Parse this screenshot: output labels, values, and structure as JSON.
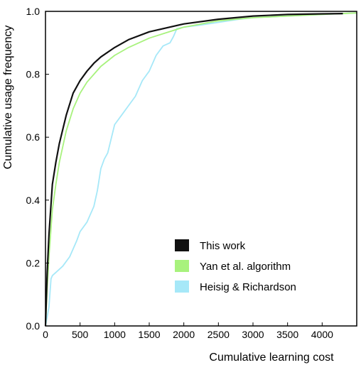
{
  "chart_data": {
    "type": "line",
    "title": "",
    "xlabel": "Cumulative learning cost",
    "ylabel": "Cumulative usage frequency",
    "xlim": [
      0,
      4500
    ],
    "ylim": [
      0,
      1.0
    ],
    "xticks": [
      0,
      500,
      1000,
      1500,
      2000,
      2500,
      3000,
      3500,
      4000
    ],
    "yticks": [
      0.0,
      0.2,
      0.4,
      0.6,
      0.8,
      1.0
    ],
    "xtick_labels": [
      "0",
      "500",
      "1000",
      "1500",
      "2000",
      "2500",
      "3000",
      "3500",
      "4000"
    ],
    "ytick_labels": [
      "0.0",
      "0.2",
      "0.4",
      "0.6",
      "0.8",
      "1.0"
    ],
    "grid": false,
    "legend_position": "bottom-right",
    "series": [
      {
        "name": "Heisig & Richardson",
        "color": "#a6e8f8",
        "x": [
          0,
          50,
          80,
          100,
          150,
          250,
          350,
          450,
          500,
          600,
          700,
          750,
          800,
          850,
          900,
          1000,
          1100,
          1200,
          1300,
          1400,
          1500,
          1600,
          1700,
          1800,
          1850,
          1900,
          2000,
          2200,
          2500,
          2800,
          3000,
          3500,
          4000,
          4500
        ],
        "y": [
          0.0,
          0.06,
          0.15,
          0.16,
          0.17,
          0.19,
          0.22,
          0.27,
          0.3,
          0.33,
          0.38,
          0.43,
          0.5,
          0.53,
          0.55,
          0.64,
          0.67,
          0.7,
          0.73,
          0.78,
          0.81,
          0.86,
          0.89,
          0.9,
          0.92,
          0.945,
          0.95,
          0.955,
          0.965,
          0.975,
          0.98,
          0.985,
          0.99,
          0.995
        ]
      },
      {
        "name": "Yan et al. algorithm",
        "color": "#a8f27d",
        "x": [
          0,
          25,
          50,
          100,
          150,
          200,
          300,
          400,
          500,
          600,
          700,
          800,
          1000,
          1200,
          1500,
          2000,
          2500,
          3000,
          3500,
          4000,
          4500
        ],
        "y": [
          0.0,
          0.12,
          0.22,
          0.37,
          0.45,
          0.52,
          0.62,
          0.69,
          0.74,
          0.775,
          0.8,
          0.825,
          0.86,
          0.885,
          0.915,
          0.95,
          0.97,
          0.98,
          0.985,
          0.99,
          0.995
        ]
      },
      {
        "name": "This work",
        "color": "#111111",
        "x": [
          0,
          25,
          50,
          100,
          150,
          200,
          300,
          400,
          500,
          600,
          700,
          800,
          1000,
          1200,
          1500,
          2000,
          2500,
          3000,
          3500,
          4000,
          4300
        ],
        "y": [
          0.0,
          0.17,
          0.29,
          0.45,
          0.52,
          0.58,
          0.67,
          0.74,
          0.78,
          0.81,
          0.835,
          0.855,
          0.885,
          0.91,
          0.935,
          0.96,
          0.975,
          0.985,
          0.99,
          0.992,
          0.993
        ]
      }
    ],
    "legend": [
      {
        "label": "This work",
        "color": "#111111"
      },
      {
        "label": "Yan et al. algorithm",
        "color": "#a8f27d"
      },
      {
        "label": "Heisig & Richardson",
        "color": "#a6e8f8"
      }
    ]
  }
}
